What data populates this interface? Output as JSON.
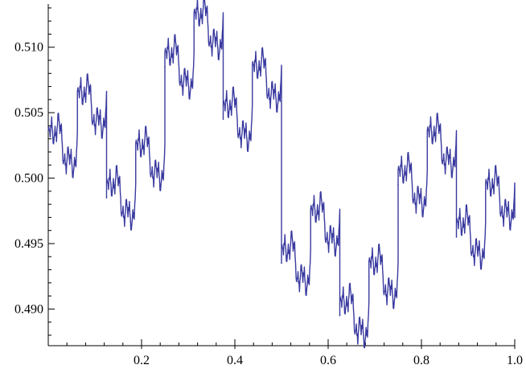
{
  "chart_data": {
    "type": "line",
    "title": "",
    "xlabel": "",
    "ylabel": "",
    "xlim": [
      0,
      1.0
    ],
    "ylim": [
      0.4872,
      0.5133
    ],
    "x_ticks": [
      0.2,
      0.4,
      0.6,
      0.8,
      1.0
    ],
    "x_tick_labels": [
      "0.2",
      "0.4",
      "0.6",
      "0.8",
      "1.0"
    ],
    "y_ticks": [
      0.49,
      0.495,
      0.5,
      0.505,
      0.51
    ],
    "y_tick_labels": [
      "0.490",
      "0.495",
      "0.500",
      "0.505",
      "0.510"
    ],
    "grid": false,
    "line_color": "#3a3aa0",
    "series": [
      {
        "x": [
          0.0,
          0.0625,
          0.125,
          0.1875,
          0.25,
          0.3125,
          0.375,
          0.4375,
          0.5,
          0.5625,
          0.625,
          0.6875,
          0.75,
          0.8125,
          0.875,
          0.9375,
          1.0
        ],
        "values": [
          0.5025,
          0.5055,
          0.4985,
          0.5015,
          0.5085,
          0.5115,
          0.5045,
          0.5075,
          0.4935,
          0.4965,
          0.4895,
          0.4925,
          0.4995,
          0.5025,
          0.4955,
          0.4985,
          0.497
        ]
      }
    ]
  }
}
